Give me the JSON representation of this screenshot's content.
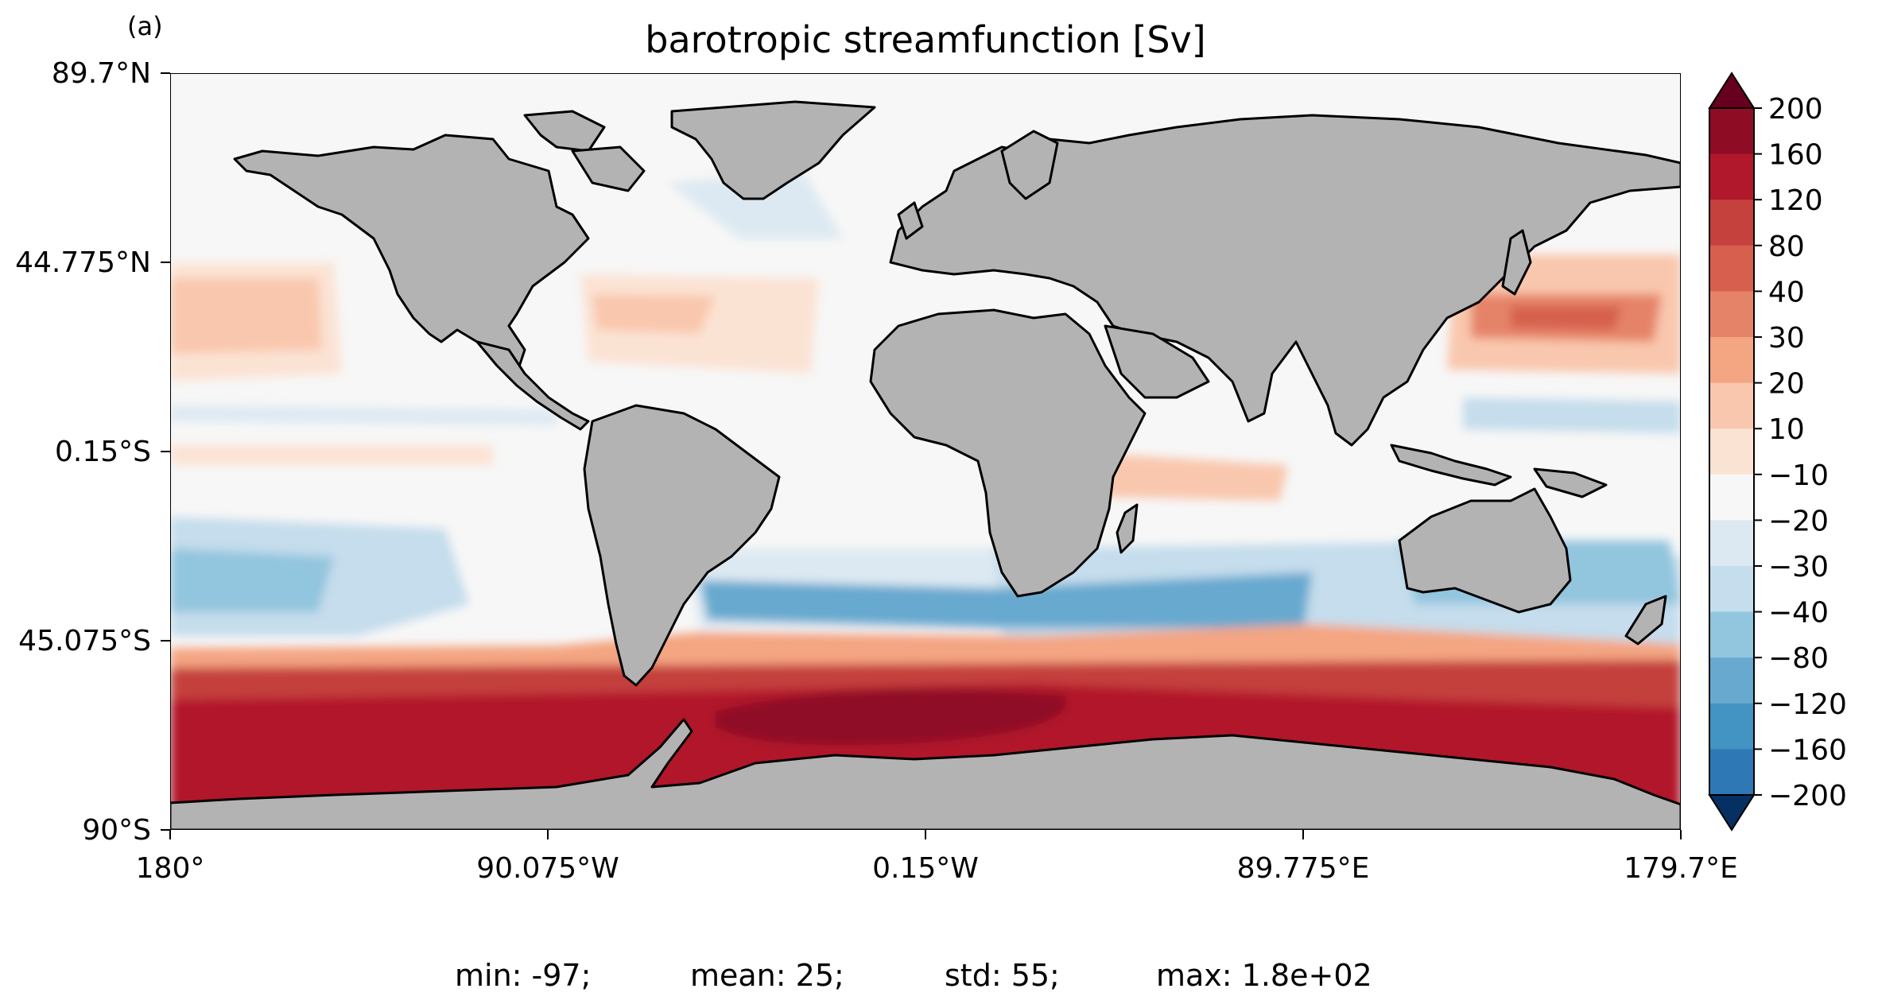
{
  "panel_label": "(a)",
  "title": "barotropic streamfunction [Sv]",
  "stats": [
    {
      "label": "min: -97;"
    },
    {
      "label": "mean: 25;"
    },
    {
      "label": "std: 55;"
    },
    {
      "label": "max: 1.8e+02"
    }
  ],
  "axes": {
    "lon_ticks": [
      "180°",
      "90.075°W",
      "0.15°W",
      "89.775°E",
      "179.7°E"
    ],
    "lat_ticks": [
      "89.7°N",
      "44.775°N",
      "0.15°S",
      "45.075°S",
      "90°S"
    ]
  },
  "colorbar": {
    "labels": [
      "200",
      "160",
      "120",
      "80",
      "40",
      "30",
      "20",
      "10",
      "−10",
      "−20",
      "−30",
      "−40",
      "−80",
      "−120",
      "−160",
      "−200"
    ],
    "colors": [
      "#67001f",
      "#8f0c25",
      "#b2182b",
      "#c4413d",
      "#d6604d",
      "#e58368",
      "#f4a582",
      "#f9c7ad",
      "#fbe3d4",
      "#f7f7f7",
      "#dde9f2",
      "#c5ddec",
      "#92c5de",
      "#68a9cf",
      "#4393c3",
      "#2e78b5",
      "#2166ac",
      "#053061"
    ]
  },
  "map": {
    "land_color": "#b3b3b3",
    "ocean_base": "#f7f7f7",
    "coast_color": "#000000"
  }
}
